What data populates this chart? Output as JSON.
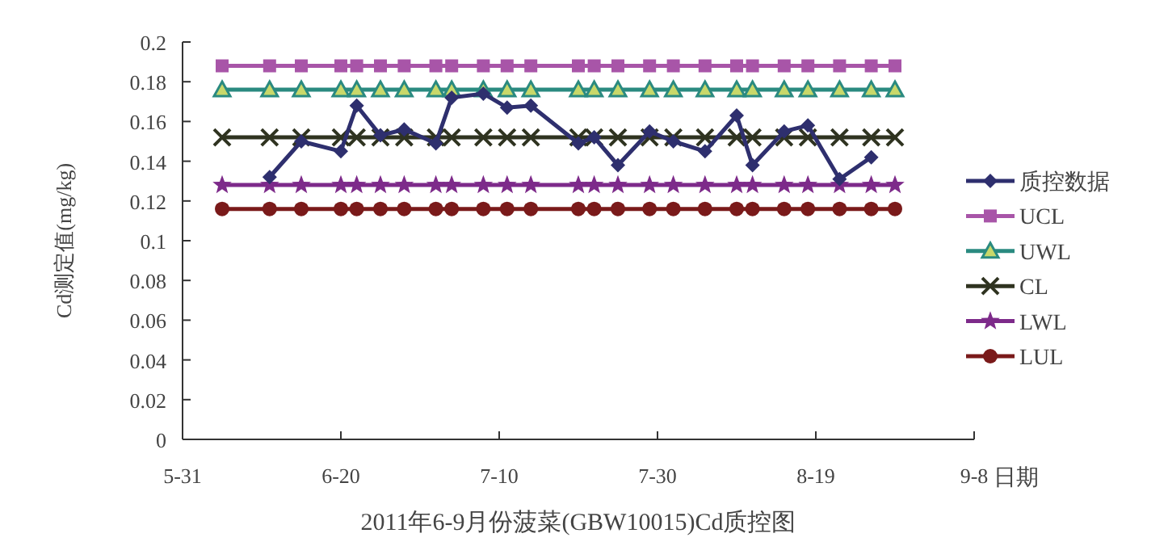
{
  "chart_data": {
    "type": "line",
    "title": "2011年6-9月份菠菜(GBW10015)Cd质控图",
    "xlabel": "日期",
    "ylabel": "Cd测定值(mg/kg)",
    "x": [
      "--06-05",
      "--06-11",
      "--06-15",
      "--06-20",
      "--06-22",
      "--06-25",
      "--06-28",
      "--07-02",
      "--07-04",
      "--07-08",
      "--07-11",
      "--07-14",
      "--07-20",
      "--07-22",
      "--07-25",
      "--07-29",
      "--08-01",
      "--08-05",
      "--08-09",
      "--08-11",
      "--08-15",
      "--08-18",
      "--08-22",
      "--08-26",
      "--08-29"
    ],
    "series": [
      {
        "name": "质控数据",
        "color": "#2e2f6e",
        "marker": "diamond",
        "values": [
          null,
          0.132,
          0.15,
          0.145,
          0.168,
          0.153,
          0.156,
          0.149,
          0.172,
          0.174,
          0.167,
          0.168,
          0.149,
          0.152,
          0.138,
          0.155,
          0.15,
          0.145,
          0.163,
          0.138,
          0.155,
          0.158,
          0.131,
          0.142,
          null
        ]
      },
      {
        "name": "UCL",
        "color": "#a855a8",
        "marker": "square",
        "values": [
          0.188,
          0.188,
          0.188,
          0.188,
          0.188,
          0.188,
          0.188,
          0.188,
          0.188,
          0.188,
          0.188,
          0.188,
          0.188,
          0.188,
          0.188,
          0.188,
          0.188,
          0.188,
          0.188,
          0.188,
          0.188,
          0.188,
          0.188,
          0.188,
          0.188
        ]
      },
      {
        "name": "UWL",
        "color": "#2a8a80",
        "marker": "triangle",
        "values": [
          0.176,
          0.176,
          0.176,
          0.176,
          0.176,
          0.176,
          0.176,
          0.176,
          0.176,
          0.176,
          0.176,
          0.176,
          0.176,
          0.176,
          0.176,
          0.176,
          0.176,
          0.176,
          0.176,
          0.176,
          0.176,
          0.176,
          0.176,
          0.176,
          0.176
        ]
      },
      {
        "name": "CL",
        "color": "#2f3320",
        "marker": "cross",
        "values": [
          0.152,
          0.152,
          0.152,
          0.152,
          0.152,
          0.152,
          0.152,
          0.152,
          0.152,
          0.152,
          0.152,
          0.152,
          0.152,
          0.152,
          0.152,
          0.152,
          0.152,
          0.152,
          0.152,
          0.152,
          0.152,
          0.152,
          0.152,
          0.152,
          0.152
        ]
      },
      {
        "name": "LWL",
        "color": "#7d2a8a",
        "marker": "star",
        "values": [
          0.128,
          0.128,
          0.128,
          0.128,
          0.128,
          0.128,
          0.128,
          0.128,
          0.128,
          0.128,
          0.128,
          0.128,
          0.128,
          0.128,
          0.128,
          0.128,
          0.128,
          0.128,
          0.128,
          0.128,
          0.128,
          0.128,
          0.128,
          0.128,
          0.128
        ]
      },
      {
        "name": "LUL",
        "color": "#7a1a1a",
        "marker": "circle",
        "values": [
          0.116,
          0.116,
          0.116,
          0.116,
          0.116,
          0.116,
          0.116,
          0.116,
          0.116,
          0.116,
          0.116,
          0.116,
          0.116,
          0.116,
          0.116,
          0.116,
          0.116,
          0.116,
          0.116,
          0.116,
          0.116,
          0.116,
          0.116,
          0.116,
          0.116
        ]
      }
    ],
    "xlim": [
      "--05-31",
      "--09-08"
    ],
    "xticks": [
      {
        "value": "--05-31",
        "label": "5-31"
      },
      {
        "value": "--06-20",
        "label": "6-20"
      },
      {
        "value": "--07-10",
        "label": "7-10"
      },
      {
        "value": "--07-30",
        "label": "7-30"
      },
      {
        "value": "--08-19",
        "label": "8-19"
      },
      {
        "value": "--09-08",
        "label": "9-8"
      }
    ],
    "ylim": [
      0,
      0.2
    ],
    "yticks": [
      0,
      0.02,
      0.04,
      0.06,
      0.08,
      0.1,
      0.12,
      0.14,
      0.16,
      0.18,
      0.2
    ],
    "grid": false,
    "legend": "right",
    "line_style": "solid"
  }
}
